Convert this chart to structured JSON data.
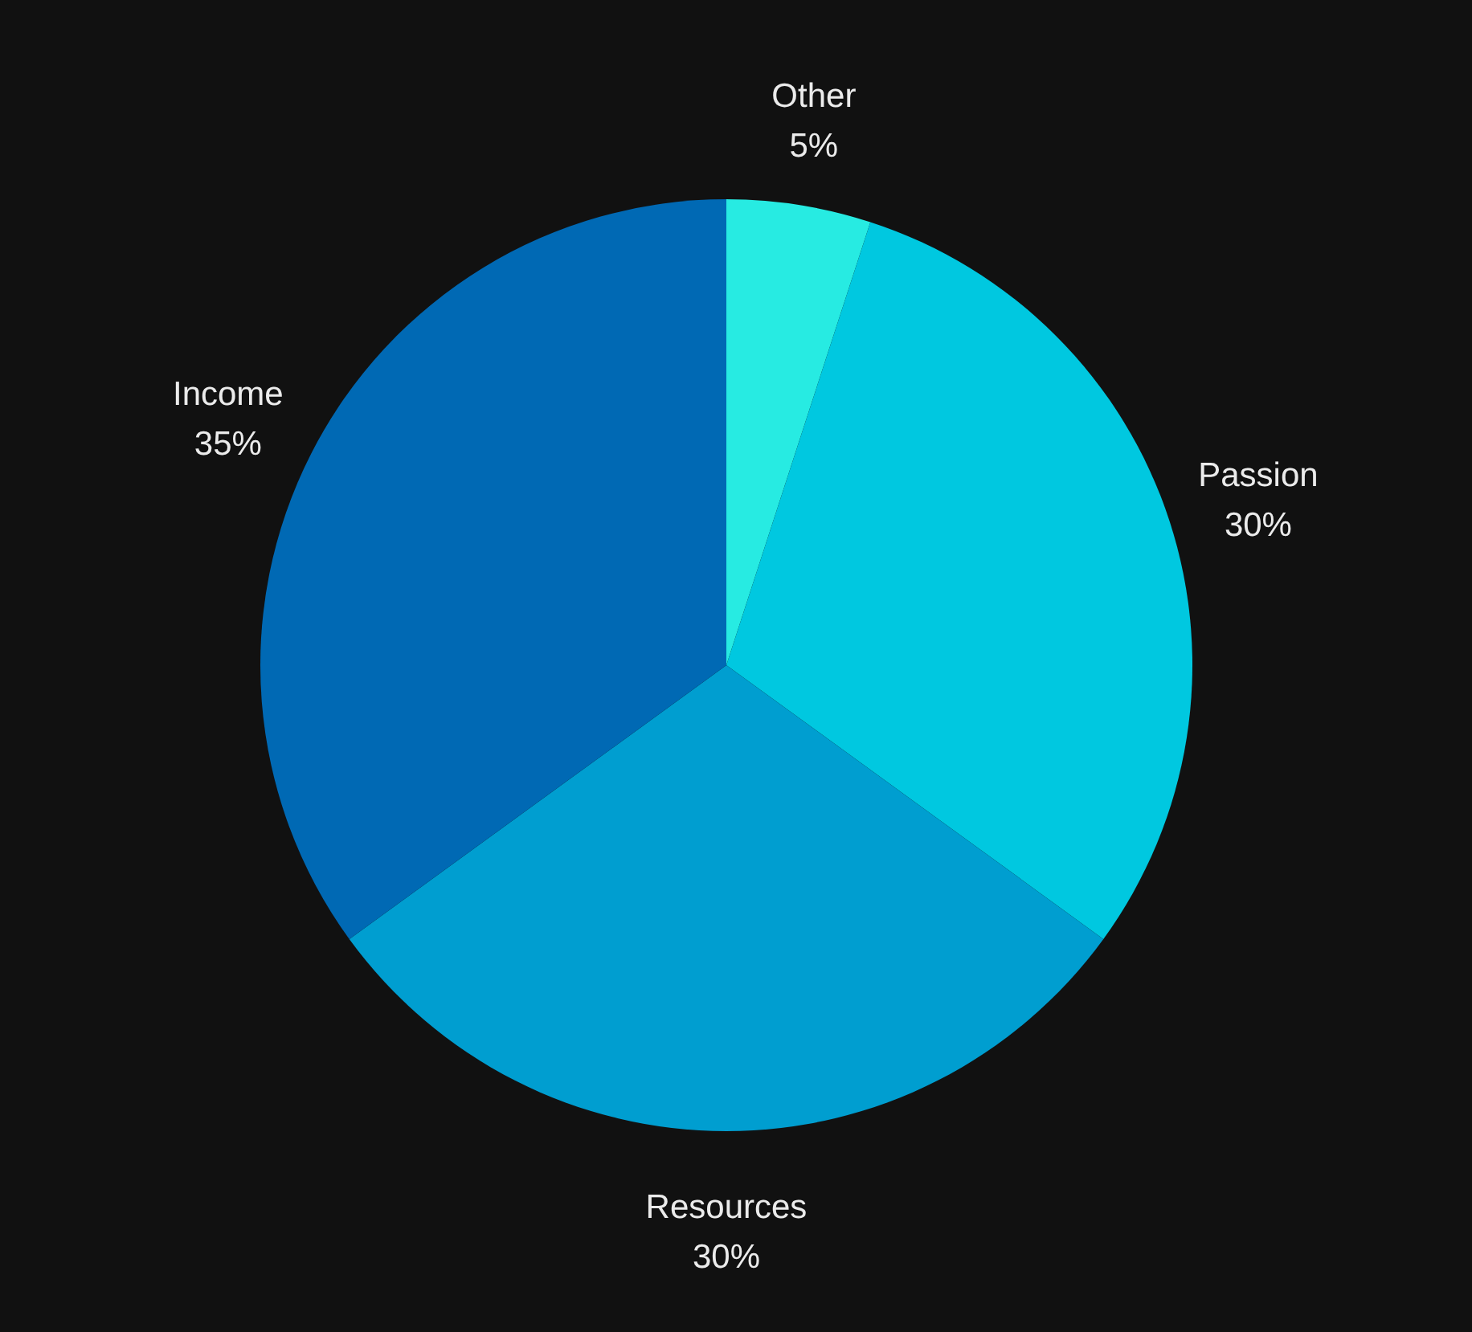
{
  "chart_data": {
    "type": "pie",
    "categories": [
      "Other",
      "Passion",
      "Resources",
      "Income"
    ],
    "values": [
      5,
      30,
      30,
      35
    ],
    "value_labels": [
      "5%",
      "30%",
      "30%",
      "35%"
    ],
    "colors": [
      "#27ebe2",
      "#00c8e0",
      "#009ed0",
      "#0069b4"
    ]
  }
}
